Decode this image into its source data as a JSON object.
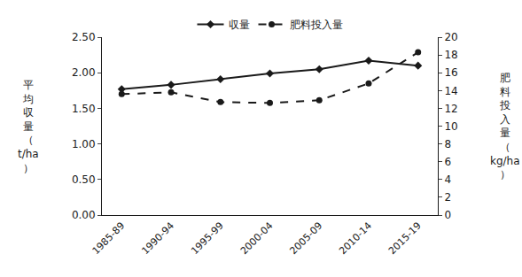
{
  "chart_data": {
    "type": "line",
    "categories": [
      "1985-89",
      "1990-94",
      "1995-99",
      "2000-04",
      "2005-09",
      "2010-14",
      "2015-19"
    ],
    "y_label": "平均収量（t/ha）",
    "y2_label": "肥料投入量（kg/ha）",
    "series": [
      {
        "name": "収量",
        "color": "#1a1a1a",
        "marker": "diamond",
        "line_style": "solid",
        "values": [
          1.77,
          1.83,
          1.91,
          1.99,
          2.05,
          2.17,
          2.1
        ]
      },
      {
        "name": "肥料投入量",
        "color": "#1a1a1a",
        "marker": "circle",
        "line_style": "dash",
        "axis": "y2",
        "values": [
          13.6,
          13.8,
          12.7,
          12.6,
          12.9,
          14.8,
          18.3
        ]
      }
    ],
    "ylim": [
      0,
      2.5
    ],
    "yticks": [
      {
        "value": 0,
        "label": "0.00"
      },
      {
        "value": 0.5,
        "label": "0.50"
      },
      {
        "value": 1,
        "label": "1.00"
      },
      {
        "value": 1.5,
        "label": "1.50"
      },
      {
        "value": 2,
        "label": "2.00"
      },
      {
        "value": 2.5,
        "label": "2.50"
      }
    ],
    "y2lim": [
      0,
      20
    ],
    "y2ticks": [
      0,
      2,
      4,
      6,
      8,
      10,
      12,
      14,
      16,
      18,
      20
    ],
    "grid": false,
    "legend": "top"
  }
}
